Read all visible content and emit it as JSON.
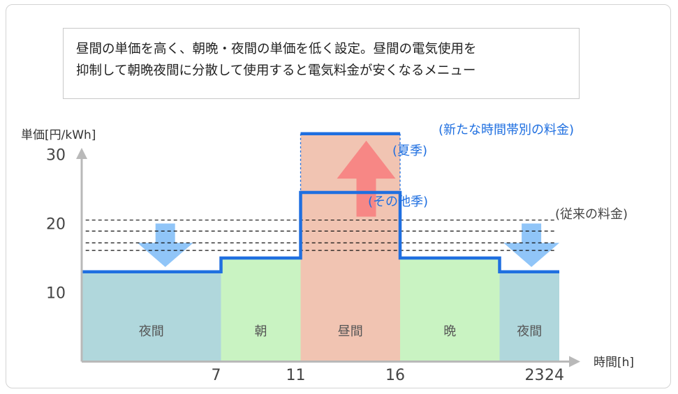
{
  "description": {
    "line1": "昼間の単価を高く、朝晩・夜間の単価を低く設定。昼間の電気使用を",
    "line2": "抑制して朝晩夜間に分散して使用すると電気料金が安くなるメニュー"
  },
  "chart_data": {
    "type": "line",
    "ylabel": "単価[円/kWh]",
    "xlabel": "時間[h]",
    "x_ticks": [
      7,
      11,
      16,
      23,
      24
    ],
    "y_ticks": [
      10,
      20,
      30
    ],
    "xlim": [
      0,
      24
    ],
    "ylim": [
      0,
      35
    ],
    "periods": [
      {
        "label": "夜間",
        "start": 0,
        "end": 7,
        "color": "#b0d7dc"
      },
      {
        "label": "朝",
        "start": 7,
        "end": 11,
        "color": "#c9f3c2"
      },
      {
        "label": "昼間",
        "start": 11,
        "end": 16,
        "color": "#f1c4b2"
      },
      {
        "label": "晩",
        "start": 16,
        "end": 21,
        "color": "#c9f3c2"
      },
      {
        "label": "夜間",
        "start": 21,
        "end": 24,
        "color": "#b0d7dc"
      }
    ],
    "series": [
      {
        "name": "(夏季)",
        "x": [
          11,
          16
        ],
        "values": [
          33,
          33
        ]
      },
      {
        "name": "(その他季)",
        "x": [
          0,
          7,
          7,
          11,
          11,
          16,
          16,
          21,
          21,
          24
        ],
        "values": [
          13,
          13,
          15,
          15,
          24.5,
          24.5,
          15,
          15,
          13,
          13
        ]
      }
    ],
    "conventional_levels": [
      20.5,
      18.9,
      17.2,
      16.1
    ],
    "annotations": {
      "new_rates": "(新たな時間帯別の料金)",
      "summer": "(夏季)",
      "other_season": "(その他季)",
      "conventional": "(従来の料金)"
    },
    "colors": {
      "line": "#1f6fe0",
      "axis": "#b9b9b9",
      "up_arrow": "#f87d7d",
      "down_arrow": "#84bff7",
      "annotation_text": "#1f6fe0",
      "conventional_text": "#444444"
    }
  }
}
